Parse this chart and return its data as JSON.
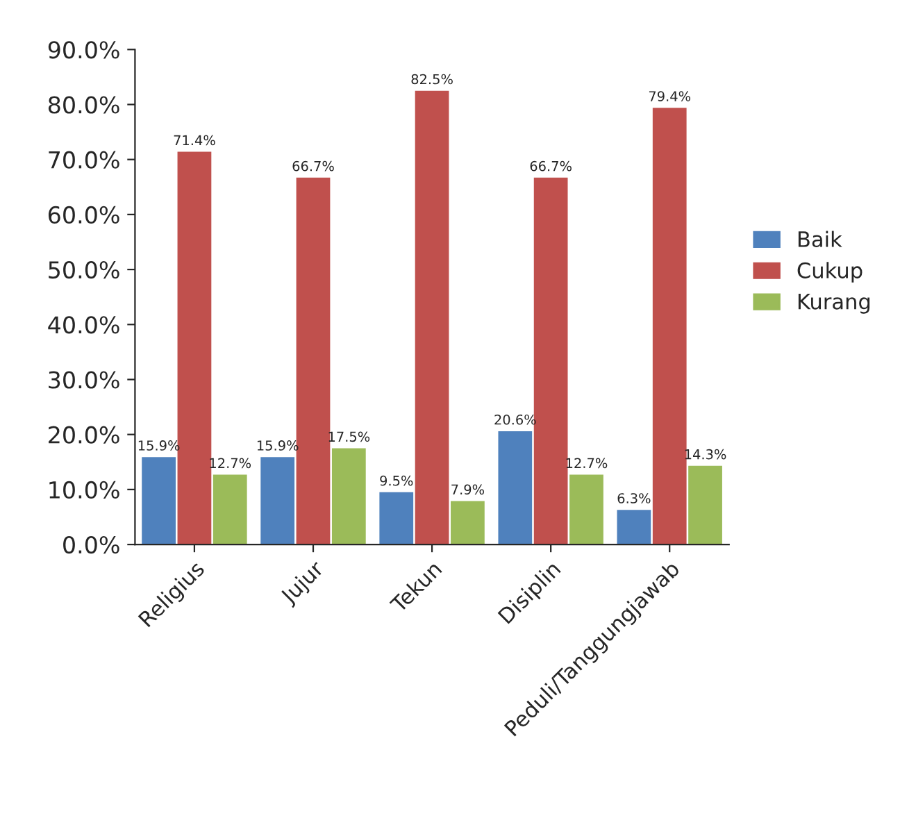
{
  "chart_data": {
    "type": "bar",
    "categories": [
      "Religius",
      "Jujur",
      "Tekun",
      "Disiplin",
      "Peduli/Tanggungjawab"
    ],
    "series": [
      {
        "name": "Baik",
        "color": "#4f81bd",
        "values": [
          15.9,
          15.9,
          9.5,
          20.6,
          6.3
        ],
        "value_labels": [
          "15.9%",
          "15.9%",
          "9.5%",
          "20.6%",
          "6.3%"
        ]
      },
      {
        "name": "Cukup",
        "color": "#c0504d",
        "values": [
          71.4,
          66.7,
          82.5,
          66.7,
          79.4
        ],
        "value_labels": [
          "71.4%",
          "66.7%",
          "82.5%",
          "66.7%",
          "79.4%"
        ]
      },
      {
        "name": "Kurang",
        "color": "#9bbb59",
        "values": [
          12.7,
          17.5,
          7.9,
          12.7,
          14.3
        ],
        "value_labels": [
          "12.7%",
          "17.5%",
          "7.9%",
          "12.7%",
          "14.3%"
        ]
      }
    ],
    "ylim": [
      0,
      90
    ],
    "yticks": [
      {
        "value": 0,
        "label": "0.0%"
      },
      {
        "value": 10,
        "label": "10.0%"
      },
      {
        "value": 20,
        "label": "20.0%"
      },
      {
        "value": 30,
        "label": "30.0%"
      },
      {
        "value": 40,
        "label": "40.0%"
      },
      {
        "value": 50,
        "label": "50.0%"
      },
      {
        "value": 60,
        "label": "60.0%"
      },
      {
        "value": 70,
        "label": "70.0%"
      },
      {
        "value": 80,
        "label": "80.0%"
      },
      {
        "value": 90,
        "label": "90.0%"
      }
    ],
    "grid": false,
    "legend": "right"
  }
}
